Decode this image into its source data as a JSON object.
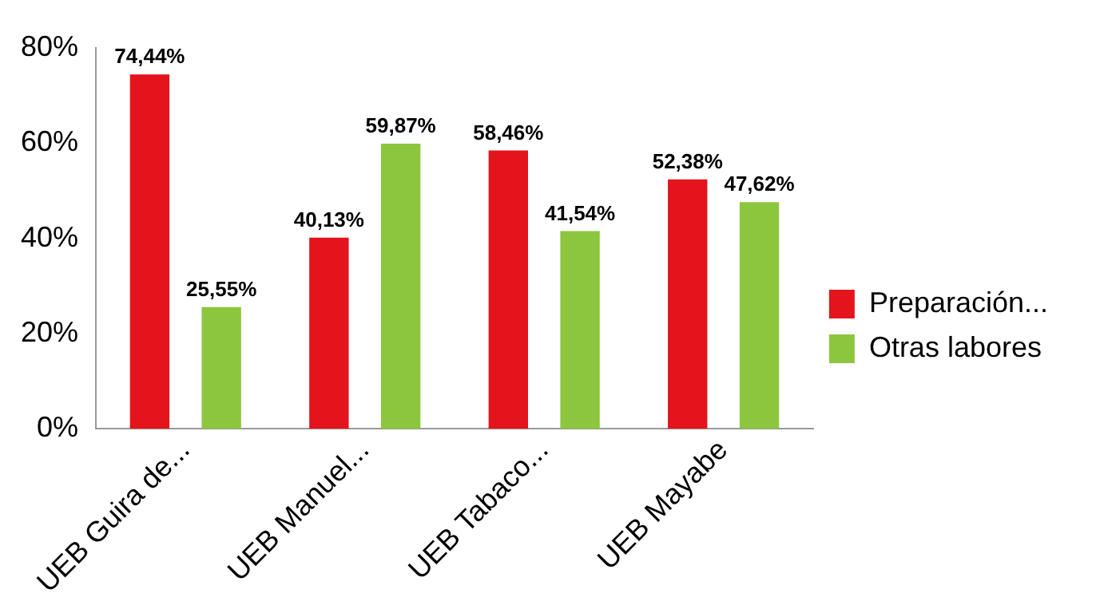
{
  "chart_data": {
    "type": "bar",
    "categories": [
      "UEB Guira de...",
      "UEB Manuel...",
      "UEB Tabaco...",
      "UEB Mayabe"
    ],
    "series": [
      {
        "name": "Preparación...",
        "color": "#e3141b",
        "values": [
          74.44,
          40.13,
          58.46,
          52.38
        ],
        "value_labels": [
          "74,44%",
          "40,13%",
          "58,46%",
          "52,38%"
        ]
      },
      {
        "name": "Otras labores",
        "color": "#8cc63e",
        "values": [
          25.55,
          59.87,
          41.54,
          47.62
        ],
        "value_labels": [
          "25,55%",
          "59,87%",
          "41,54%",
          "47,62%"
        ]
      }
    ],
    "ylim": [
      0,
      80
    ],
    "yticks": [
      {
        "value": 0,
        "label": "0%"
      },
      {
        "value": 20,
        "label": "20%"
      },
      {
        "value": 40,
        "label": "40%"
      },
      {
        "value": 60,
        "label": "60%"
      },
      {
        "value": 80,
        "label": "80%"
      }
    ],
    "grid": false,
    "legend": "right"
  }
}
